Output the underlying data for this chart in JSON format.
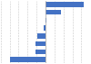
{
  "values": [
    55,
    22,
    1,
    -2,
    -12,
    -14,
    -15,
    -52
  ],
  "bar_color": "#4472c4",
  "background_color": "#ffffff",
  "figsize": [
    1.0,
    0.71
  ],
  "dpi": 100,
  "xlim": [
    -65,
    65
  ],
  "grid_color": "#c8c8c8"
}
